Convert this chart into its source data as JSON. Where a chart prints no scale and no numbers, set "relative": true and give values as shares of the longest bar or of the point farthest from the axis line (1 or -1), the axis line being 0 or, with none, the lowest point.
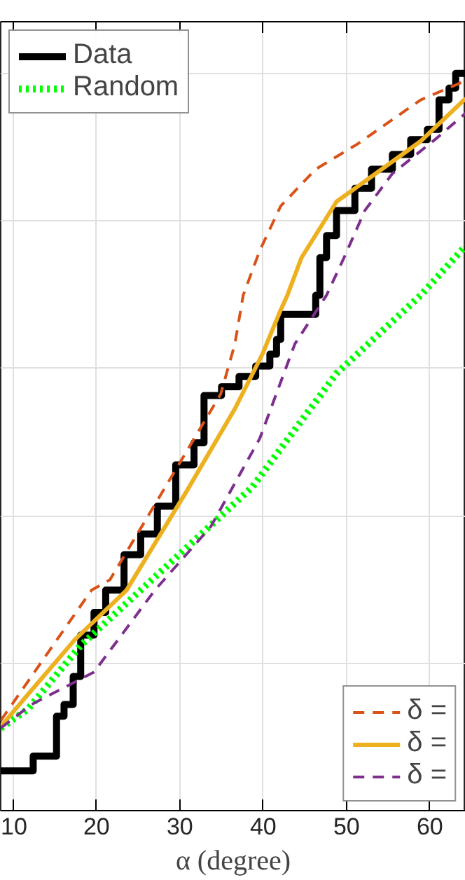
{
  "chart_data": {
    "type": "line",
    "xlabel": "α (degree)",
    "relative": true,
    "grid": true,
    "legend": [
      "top left",
      "bottom right"
    ],
    "xlim": [
      8.5,
      64.3
    ],
    "xticks": [
      10,
      20,
      30,
      40,
      50,
      60
    ],
    "series": [
      {
        "name": "Data",
        "type": "step",
        "color": "#000000",
        "line_style": "solid",
        "x": [
          8.5,
          12.4,
          15.2,
          16.1,
          17.2,
          18.1,
          19.7,
          21.1,
          23.3,
          25.3,
          27.3,
          29.5,
          31.7,
          32.9,
          35.0,
          37.1,
          39.1,
          40.8,
          41.6,
          42.1,
          46.3,
          46.8,
          47.6,
          48.8,
          51.0,
          53.0,
          55.5,
          57.7,
          59.7,
          61.1,
          62.3,
          63.1,
          64.3
        ],
        "values": [
          0.054,
          0.074,
          0.128,
          0.144,
          0.182,
          0.238,
          0.269,
          0.299,
          0.347,
          0.375,
          0.413,
          0.469,
          0.499,
          0.563,
          0.575,
          0.589,
          0.603,
          0.619,
          0.639,
          0.673,
          0.699,
          0.75,
          0.78,
          0.814,
          0.844,
          0.87,
          0.89,
          0.91,
          0.924,
          0.964,
          0.98,
          1.0,
          1.0
        ]
      },
      {
        "name": "Random",
        "color": "#00ff00",
        "line_style": "dotted",
        "x": [
          8.5,
          11.8,
          18.1,
          25.3,
          38.7,
          48.8,
          58.9,
          64.3
        ],
        "values": [
          0.112,
          0.138,
          0.224,
          0.299,
          0.439,
          0.593,
          0.699,
          0.766
        ]
      },
      {
        "name": "δ =",
        "type": "line",
        "color": "#d95319",
        "line_style": "dashed",
        "x": [
          8.5,
          14.4,
          19.4,
          21.6,
          27.0,
          34.9,
          36.6,
          37.6,
          39.6,
          42.1,
          46.3,
          51.3,
          58.9,
          64.3
        ],
        "values": [
          0.122,
          0.218,
          0.299,
          0.313,
          0.415,
          0.565,
          0.633,
          0.699,
          0.76,
          0.82,
          0.87,
          0.904,
          0.964,
          0.99
        ]
      },
      {
        "name": "δ =",
        "type": "line",
        "color": "#edb120",
        "line_style": "solid",
        "x": [
          8.5,
          11.8,
          17.4,
          23.6,
          30.8,
          36.6,
          39.9,
          42.1,
          42.9,
          44.6,
          48.8,
          53.0,
          58.9,
          64.3
        ],
        "values": [
          0.114,
          0.158,
          0.232,
          0.299,
          0.433,
          0.545,
          0.619,
          0.679,
          0.699,
          0.75,
          0.826,
          0.86,
          0.908,
          0.966
        ]
      },
      {
        "name": "δ =",
        "type": "line",
        "color": "#7e2f8e",
        "line_style": "dashed",
        "x": [
          8.5,
          12.2,
          19.7,
          27.0,
          33.7,
          39.6,
          43.8,
          47.6,
          49.7,
          52.2,
          55.5,
          60.6,
          64.3
        ],
        "values": [
          0.112,
          0.144,
          0.188,
          0.299,
          0.385,
          0.505,
          0.633,
          0.699,
          0.75,
          0.814,
          0.864,
          0.91,
          0.946
        ]
      }
    ]
  }
}
